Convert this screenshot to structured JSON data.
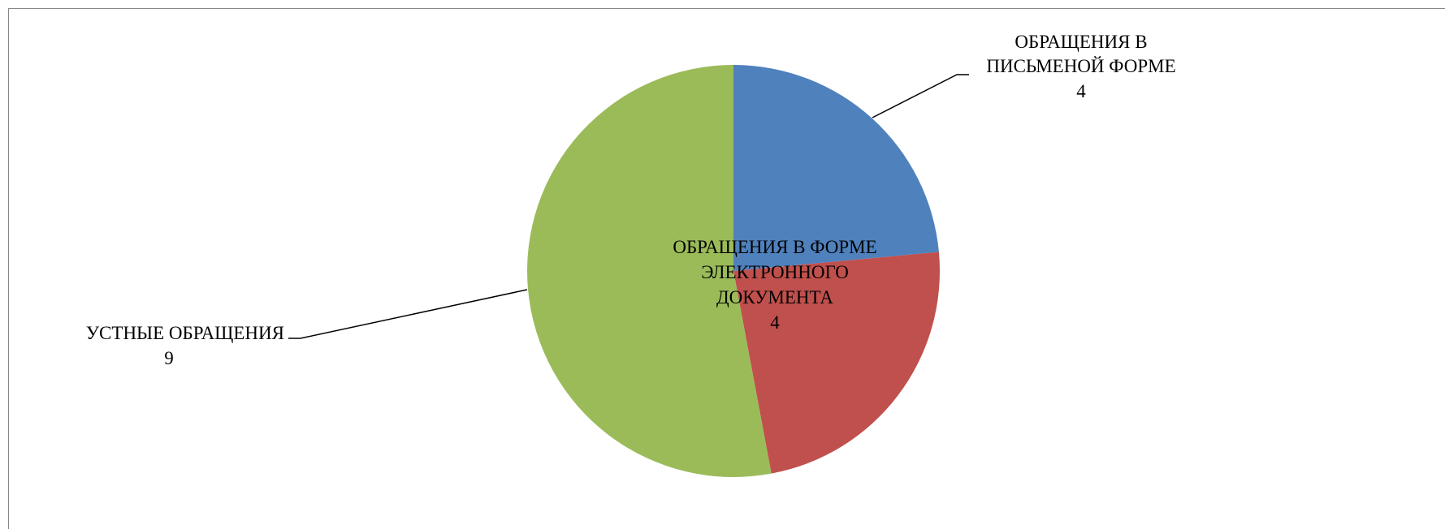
{
  "chart_data": {
    "type": "pie",
    "start_angle": "top",
    "direction": "clockwise",
    "legend": "none",
    "slices": [
      {
        "label_lines": [
          "ОБРАЩЕНИЯ В",
          "ПИСЬМЕНОЙ ФОРМЕ"
        ],
        "value": 4,
        "value_label": "4",
        "color": "#4F81BD"
      },
      {
        "label_lines": [
          "ОБРАЩЕНИЯ В ФОРМЕ",
          "ЭЛЕКТРОННОГО",
          "ДОКУМЕНТА"
        ],
        "value": 4,
        "value_label": "4",
        "color": "#C0504D"
      },
      {
        "label_lines": [
          "УСТНЫЕ ОБРАЩЕНИЯ"
        ],
        "value": 9,
        "value_label": "9",
        "color": "#9BBB59"
      }
    ]
  }
}
